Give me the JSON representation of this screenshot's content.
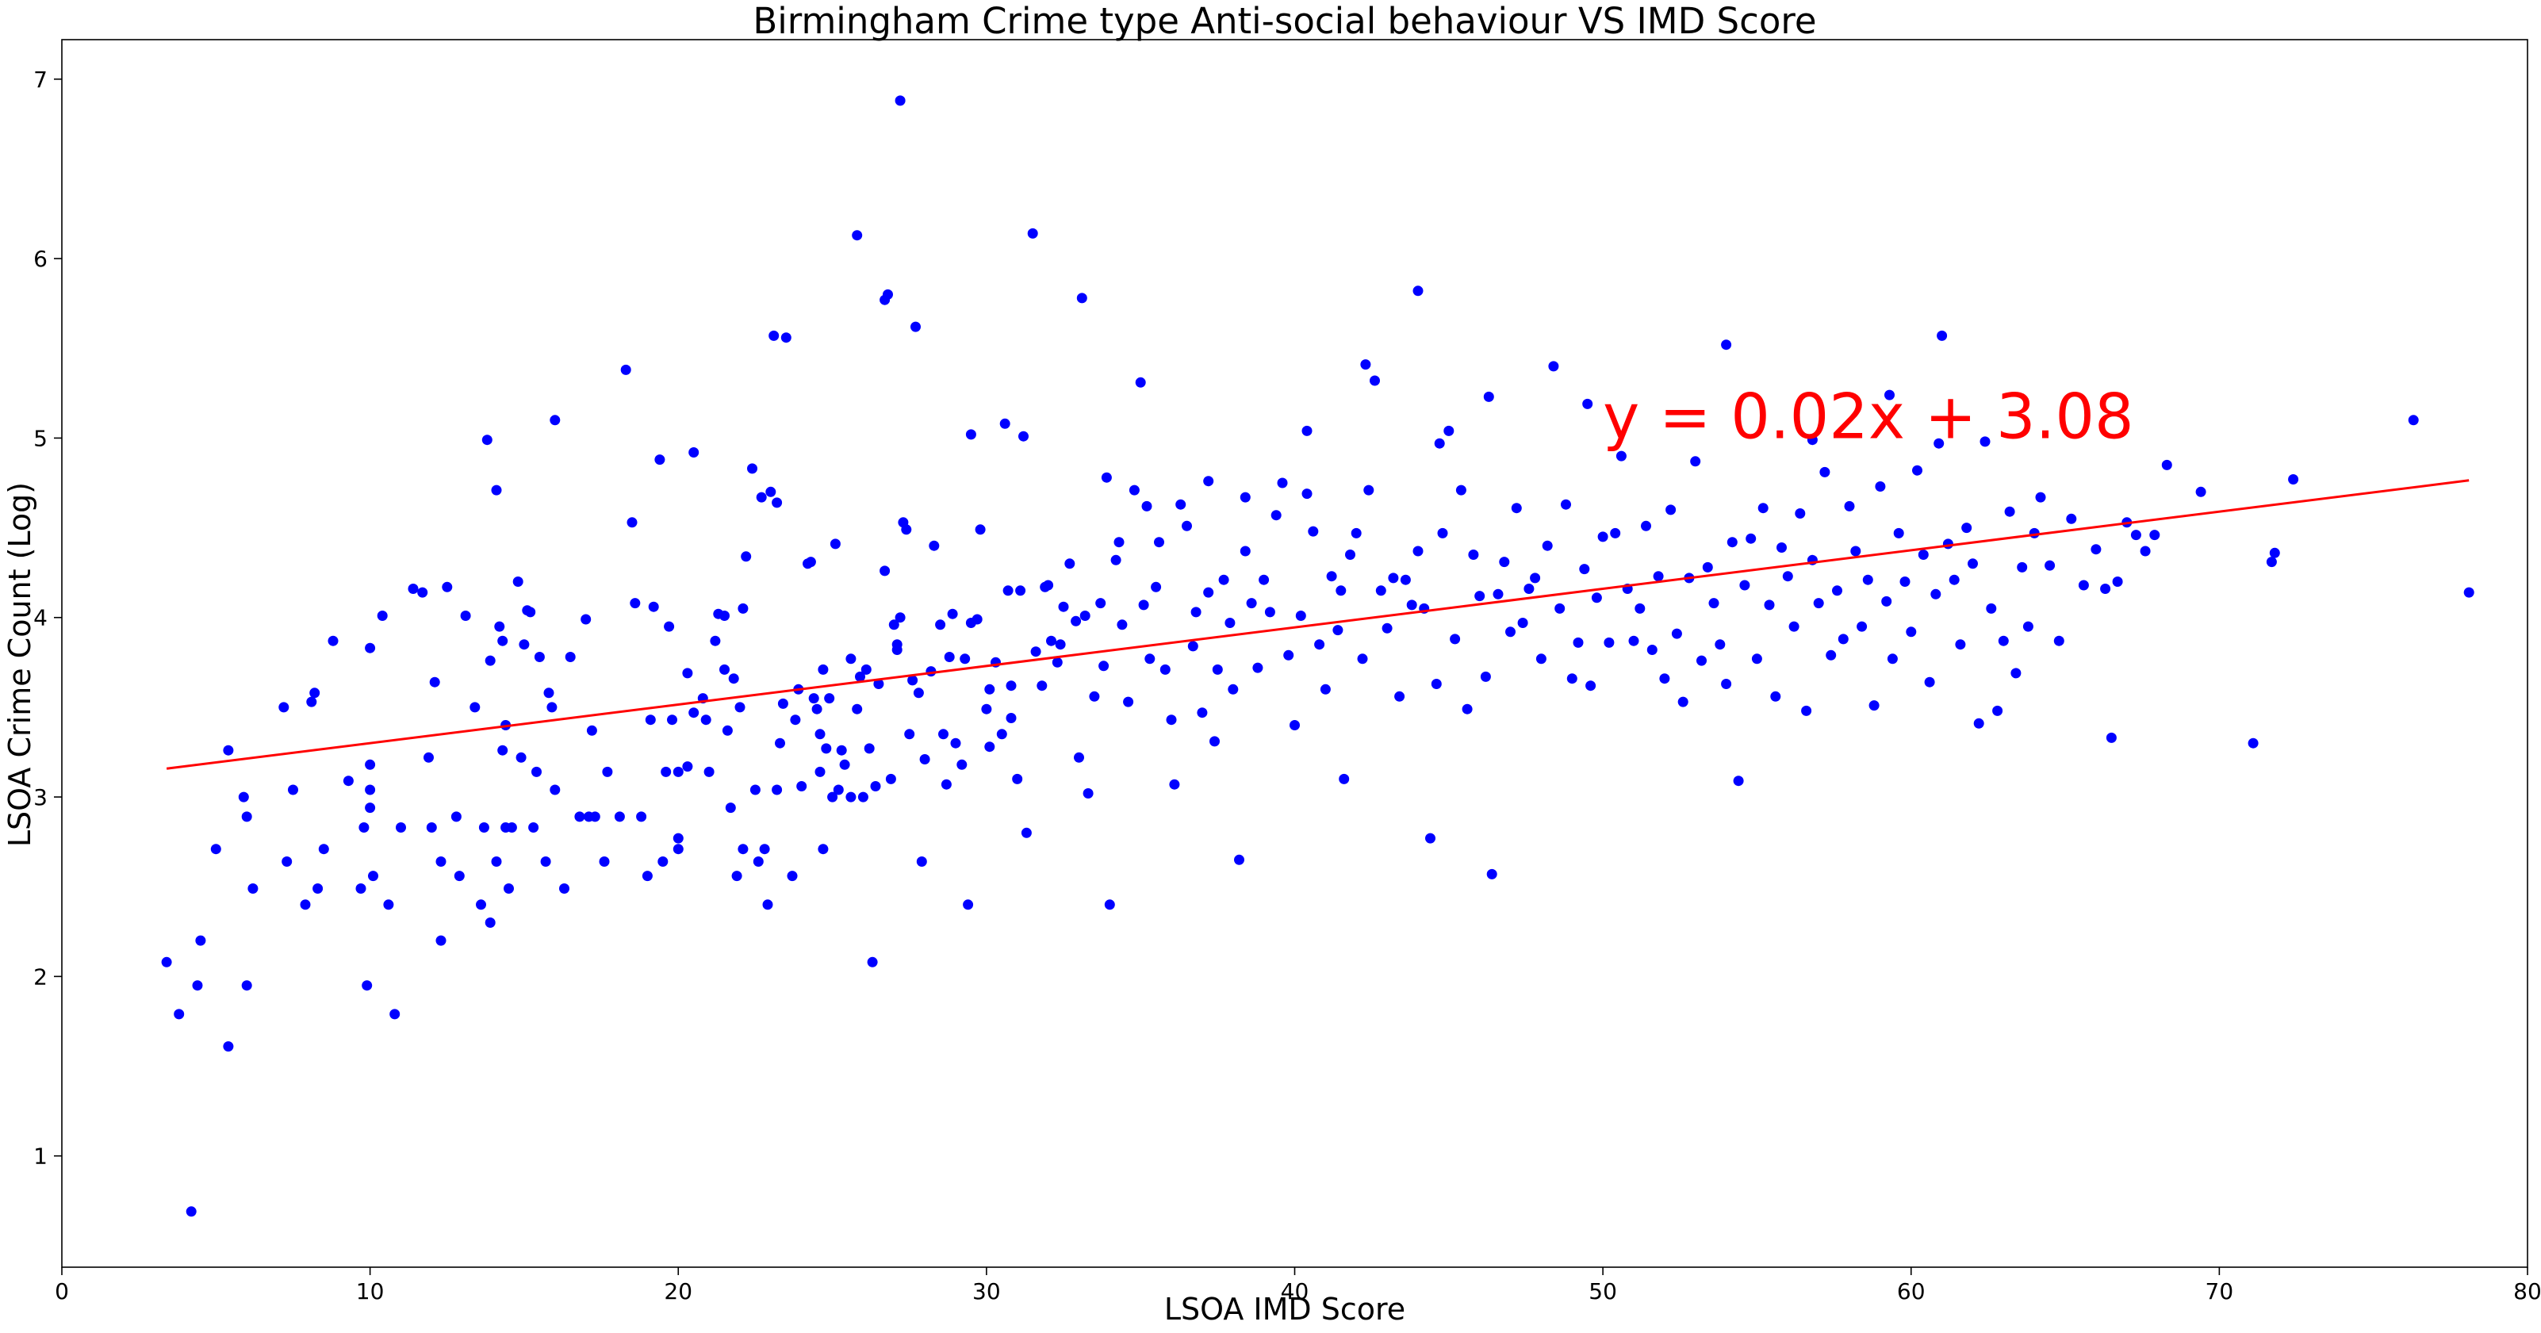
{
  "chart_data": {
    "type": "scatter",
    "title": "Birmingham Crime type Anti-social behaviour VS IMD Score",
    "xlabel": "LSOA IMD Score",
    "ylabel": "LSOA Crime Count (Log)",
    "xlim": [
      0,
      80
    ],
    "ylim": [
      0.38,
      7.22
    ],
    "xticks": [
      0,
      10,
      20,
      30,
      40,
      50,
      60,
      70,
      80
    ],
    "yticks": [
      1,
      2,
      3,
      4,
      5,
      6,
      7
    ],
    "grid": false,
    "legend": "none",
    "marker_color": "#0000ff",
    "line_color": "#ff0000",
    "trendline": {
      "slope": 0.0215,
      "intercept": 3.085,
      "x_range": [
        3.4,
        78.1
      ],
      "label": "y = 0.02x + 3.08"
    },
    "points": [
      [
        3.4,
        2.08
      ],
      [
        3.8,
        1.79
      ],
      [
        4.2,
        0.69
      ],
      [
        4.5,
        2.2
      ],
      [
        4.4,
        1.95
      ],
      [
        5.0,
        2.71
      ],
      [
        5.4,
        1.61
      ],
      [
        5.4,
        3.26
      ],
      [
        5.9,
        3.0
      ],
      [
        6.0,
        2.89
      ],
      [
        6.0,
        1.95
      ],
      [
        6.2,
        2.49
      ],
      [
        7.2,
        3.5
      ],
      [
        7.3,
        2.64
      ],
      [
        7.5,
        3.04
      ],
      [
        7.9,
        2.4
      ],
      [
        8.1,
        3.53
      ],
      [
        8.2,
        3.58
      ],
      [
        8.3,
        2.49
      ],
      [
        8.5,
        2.71
      ],
      [
        8.8,
        3.87
      ],
      [
        9.3,
        3.09
      ],
      [
        9.7,
        2.49
      ],
      [
        9.8,
        2.83
      ],
      [
        9.9,
        1.95
      ],
      [
        10.0,
        3.18
      ],
      [
        10.0,
        2.94
      ],
      [
        10.0,
        3.04
      ],
      [
        10.0,
        3.83
      ],
      [
        10.1,
        2.56
      ],
      [
        10.4,
        4.01
      ],
      [
        10.6,
        2.4
      ],
      [
        10.8,
        1.79
      ],
      [
        11.0,
        2.83
      ],
      [
        11.4,
        4.16
      ],
      [
        11.7,
        4.14
      ],
      [
        11.9,
        3.22
      ],
      [
        12.0,
        2.83
      ],
      [
        12.1,
        3.64
      ],
      [
        12.3,
        2.64
      ],
      [
        12.3,
        2.2
      ],
      [
        12.5,
        4.17
      ],
      [
        12.8,
        2.89
      ],
      [
        12.9,
        2.56
      ],
      [
        13.1,
        4.01
      ],
      [
        13.4,
        3.5
      ],
      [
        13.6,
        2.4
      ],
      [
        13.7,
        2.83
      ],
      [
        13.8,
        4.99
      ],
      [
        13.9,
        3.76
      ],
      [
        13.9,
        2.3
      ],
      [
        14.1,
        2.64
      ],
      [
        14.1,
        4.71
      ],
      [
        14.2,
        3.95
      ],
      [
        14.3,
        3.87
      ],
      [
        14.3,
        3.26
      ],
      [
        14.4,
        3.4
      ],
      [
        14.4,
        2.83
      ],
      [
        14.5,
        2.49
      ],
      [
        14.6,
        2.83
      ],
      [
        14.8,
        4.2
      ],
      [
        14.9,
        3.22
      ],
      [
        15.0,
        3.85
      ],
      [
        15.1,
        4.04
      ],
      [
        15.2,
        4.03
      ],
      [
        15.3,
        2.83
      ],
      [
        15.4,
        3.14
      ],
      [
        15.5,
        3.78
      ],
      [
        15.7,
        2.64
      ],
      [
        15.8,
        3.58
      ],
      [
        15.9,
        3.5
      ],
      [
        16.0,
        3.04
      ],
      [
        16.0,
        5.1
      ],
      [
        16.3,
        2.49
      ],
      [
        16.5,
        3.78
      ],
      [
        16.8,
        2.89
      ],
      [
        17.0,
        3.99
      ],
      [
        17.1,
        2.89
      ],
      [
        17.2,
        3.37
      ],
      [
        17.3,
        2.89
      ],
      [
        17.6,
        2.64
      ],
      [
        17.7,
        3.14
      ],
      [
        18.1,
        2.89
      ],
      [
        18.3,
        5.38
      ],
      [
        18.5,
        4.53
      ],
      [
        18.6,
        4.08
      ],
      [
        18.8,
        2.89
      ],
      [
        19.0,
        2.56
      ],
      [
        19.1,
        3.43
      ],
      [
        19.2,
        4.06
      ],
      [
        19.4,
        4.88
      ],
      [
        19.5,
        2.64
      ],
      [
        19.6,
        3.14
      ],
      [
        19.7,
        3.95
      ],
      [
        19.8,
        3.43
      ],
      [
        20.0,
        3.14
      ],
      [
        20.0,
        2.71
      ],
      [
        20.0,
        2.77
      ],
      [
        20.3,
        3.17
      ],
      [
        20.3,
        3.69
      ],
      [
        20.5,
        3.47
      ],
      [
        20.5,
        4.92
      ],
      [
        20.8,
        3.55
      ],
      [
        20.9,
        3.43
      ],
      [
        21.0,
        3.14
      ],
      [
        21.2,
        3.87
      ],
      [
        21.3,
        4.02
      ],
      [
        21.5,
        3.71
      ],
      [
        21.5,
        4.01
      ],
      [
        21.6,
        3.37
      ],
      [
        21.7,
        2.94
      ],
      [
        21.8,
        3.66
      ],
      [
        21.9,
        2.56
      ],
      [
        22.0,
        3.5
      ],
      [
        22.1,
        4.05
      ],
      [
        22.1,
        2.71
      ],
      [
        22.2,
        4.34
      ],
      [
        22.4,
        4.83
      ],
      [
        22.5,
        3.04
      ],
      [
        22.6,
        2.64
      ],
      [
        22.7,
        4.67
      ],
      [
        22.8,
        2.71
      ],
      [
        22.9,
        2.4
      ],
      [
        23.0,
        4.7
      ],
      [
        23.1,
        5.57
      ],
      [
        23.2,
        4.64
      ],
      [
        23.2,
        3.04
      ],
      [
        23.3,
        3.3
      ],
      [
        23.4,
        3.52
      ],
      [
        23.5,
        5.56
      ],
      [
        23.7,
        2.56
      ],
      [
        23.8,
        3.43
      ],
      [
        23.9,
        3.6
      ],
      [
        24.0,
        3.06
      ],
      [
        24.2,
        4.3
      ],
      [
        24.3,
        4.31
      ],
      [
        24.4,
        3.55
      ],
      [
        24.5,
        3.49
      ],
      [
        24.6,
        3.14
      ],
      [
        24.6,
        3.35
      ],
      [
        24.7,
        3.71
      ],
      [
        24.7,
        2.71
      ],
      [
        24.8,
        3.27
      ],
      [
        24.9,
        3.55
      ],
      [
        25.0,
        3.0
      ],
      [
        25.1,
        4.41
      ],
      [
        25.2,
        3.04
      ],
      [
        25.3,
        3.26
      ],
      [
        25.4,
        3.18
      ],
      [
        25.6,
        3.77
      ],
      [
        25.6,
        3.0
      ],
      [
        25.8,
        3.49
      ],
      [
        25.9,
        3.67
      ],
      [
        26.0,
        3.0
      ],
      [
        26.1,
        3.71
      ],
      [
        26.2,
        3.27
      ],
      [
        26.3,
        2.08
      ],
      [
        26.4,
        3.06
      ],
      [
        26.5,
        3.63
      ],
      [
        26.7,
        4.26
      ],
      [
        26.8,
        5.8
      ],
      [
        26.9,
        3.1
      ],
      [
        27.0,
        3.96
      ],
      [
        27.1,
        3.85
      ],
      [
        27.1,
        3.82
      ],
      [
        27.2,
        4.0
      ],
      [
        27.3,
        4.53
      ],
      [
        27.4,
        4.49
      ],
      [
        27.5,
        3.35
      ],
      [
        27.6,
        3.65
      ],
      [
        27.7,
        5.62
      ],
      [
        27.8,
        3.58
      ],
      [
        27.9,
        2.64
      ],
      [
        28.0,
        3.21
      ],
      [
        28.2,
        3.7
      ],
      [
        28.3,
        4.4
      ],
      [
        28.5,
        3.96
      ],
      [
        28.6,
        3.35
      ],
      [
        28.7,
        3.07
      ],
      [
        28.8,
        3.78
      ],
      [
        28.9,
        4.02
      ],
      [
        29.0,
        3.3
      ],
      [
        29.2,
        3.18
      ],
      [
        29.3,
        3.77
      ],
      [
        29.4,
        2.4
      ],
      [
        29.5,
        3.97
      ],
      [
        29.7,
        3.99
      ],
      [
        29.8,
        4.49
      ],
      [
        30.0,
        3.49
      ],
      [
        30.1,
        3.28
      ],
      [
        30.1,
        3.6
      ],
      [
        30.3,
        3.75
      ],
      [
        30.5,
        3.35
      ],
      [
        30.7,
        4.15
      ],
      [
        30.8,
        3.44
      ],
      [
        30.8,
        3.62
      ],
      [
        31.0,
        3.1
      ],
      [
        31.1,
        4.15
      ],
      [
        31.3,
        2.8
      ],
      [
        31.5,
        6.14
      ],
      [
        31.6,
        3.81
      ],
      [
        31.8,
        3.62
      ],
      [
        31.9,
        4.17
      ],
      [
        32.0,
        4.18
      ],
      [
        32.1,
        3.87
      ],
      [
        32.3,
        3.75
      ],
      [
        32.4,
        3.85
      ],
      [
        32.5,
        4.06
      ],
      [
        32.7,
        4.3
      ],
      [
        32.9,
        3.98
      ],
      [
        33.0,
        3.22
      ],
      [
        33.1,
        5.78
      ],
      [
        33.2,
        4.01
      ],
      [
        33.3,
        3.02
      ],
      [
        33.5,
        3.56
      ],
      [
        33.7,
        4.08
      ],
      [
        33.8,
        3.73
      ],
      [
        34.0,
        2.4
      ],
      [
        34.2,
        4.32
      ],
      [
        34.3,
        4.42
      ],
      [
        34.4,
        3.96
      ],
      [
        34.6,
        3.53
      ],
      [
        34.8,
        4.71
      ],
      [
        35.0,
        5.31
      ],
      [
        35.1,
        4.07
      ],
      [
        35.3,
        3.77
      ],
      [
        35.5,
        4.17
      ],
      [
        35.6,
        4.42
      ],
      [
        35.8,
        3.71
      ],
      [
        36.0,
        3.43
      ],
      [
        36.1,
        3.07
      ],
      [
        36.3,
        4.63
      ],
      [
        36.5,
        4.51
      ],
      [
        36.7,
        3.84
      ],
      [
        36.8,
        4.03
      ],
      [
        37.0,
        3.47
      ],
      [
        37.2,
        4.14
      ],
      [
        37.4,
        3.31
      ],
      [
        37.5,
        3.71
      ],
      [
        37.7,
        4.21
      ],
      [
        37.9,
        3.97
      ],
      [
        38.0,
        3.6
      ],
      [
        38.2,
        2.65
      ],
      [
        38.4,
        4.37
      ],
      [
        38.6,
        4.08
      ],
      [
        38.8,
        3.72
      ],
      [
        39.0,
        4.21
      ],
      [
        39.2,
        4.03
      ],
      [
        39.4,
        4.57
      ],
      [
        39.6,
        4.75
      ],
      [
        39.8,
        3.79
      ],
      [
        40.0,
        3.4
      ],
      [
        40.2,
        4.01
      ],
      [
        40.4,
        4.69
      ],
      [
        40.6,
        4.48
      ],
      [
        40.8,
        3.85
      ],
      [
        41.0,
        3.6
      ],
      [
        41.2,
        4.23
      ],
      [
        41.4,
        3.93
      ],
      [
        41.6,
        3.1
      ],
      [
        41.8,
        4.35
      ],
      [
        42.0,
        4.47
      ],
      [
        42.2,
        3.77
      ],
      [
        42.4,
        4.71
      ],
      [
        42.6,
        5.32
      ],
      [
        42.8,
        4.15
      ],
      [
        43.0,
        3.94
      ],
      [
        43.2,
        4.22
      ],
      [
        43.4,
        3.56
      ],
      [
        43.6,
        4.21
      ],
      [
        43.8,
        4.07
      ],
      [
        44.0,
        4.37
      ],
      [
        44.2,
        4.05
      ],
      [
        44.4,
        2.77
      ],
      [
        44.6,
        3.63
      ],
      [
        44.8,
        4.47
      ],
      [
        45.0,
        5.04
      ],
      [
        45.2,
        3.88
      ],
      [
        45.4,
        4.71
      ],
      [
        45.6,
        3.49
      ],
      [
        45.8,
        4.35
      ],
      [
        46.0,
        4.12
      ],
      [
        46.2,
        3.67
      ],
      [
        46.4,
        2.57
      ],
      [
        46.6,
        4.13
      ],
      [
        46.8,
        4.31
      ],
      [
        47.0,
        3.92
      ],
      [
        47.2,
        4.61
      ],
      [
        47.4,
        3.97
      ],
      [
        47.6,
        4.16
      ],
      [
        47.8,
        4.22
      ],
      [
        48.0,
        3.77
      ],
      [
        48.2,
        4.4
      ],
      [
        48.4,
        5.4
      ],
      [
        48.6,
        4.05
      ],
      [
        48.8,
        4.63
      ],
      [
        49.0,
        3.66
      ],
      [
        49.2,
        3.86
      ],
      [
        49.4,
        4.27
      ],
      [
        49.6,
        3.62
      ],
      [
        49.8,
        4.11
      ],
      [
        50.0,
        4.45
      ],
      [
        50.2,
        3.86
      ],
      [
        50.4,
        4.47
      ],
      [
        50.6,
        4.9
      ],
      [
        50.8,
        4.16
      ],
      [
        51.0,
        3.87
      ],
      [
        51.2,
        4.05
      ],
      [
        51.4,
        4.51
      ],
      [
        51.6,
        3.82
      ],
      [
        51.8,
        4.23
      ],
      [
        52.0,
        3.66
      ],
      [
        52.2,
        4.6
      ],
      [
        52.4,
        3.91
      ],
      [
        52.6,
        3.53
      ],
      [
        52.8,
        4.22
      ],
      [
        53.0,
        4.87
      ],
      [
        53.2,
        3.76
      ],
      [
        53.4,
        4.28
      ],
      [
        53.6,
        4.08
      ],
      [
        53.8,
        3.85
      ],
      [
        54.0,
        3.63
      ],
      [
        54.2,
        4.42
      ],
      [
        54.4,
        3.09
      ],
      [
        54.6,
        4.18
      ],
      [
        54.8,
        4.44
      ],
      [
        55.0,
        3.77
      ],
      [
        55.2,
        4.61
      ],
      [
        55.4,
        4.07
      ],
      [
        55.6,
        3.56
      ],
      [
        55.8,
        4.39
      ],
      [
        56.0,
        4.23
      ],
      [
        56.2,
        3.95
      ],
      [
        56.4,
        4.58
      ],
      [
        56.6,
        3.48
      ],
      [
        56.8,
        4.32
      ],
      [
        57.0,
        4.08
      ],
      [
        57.2,
        4.81
      ],
      [
        57.4,
        3.79
      ],
      [
        57.6,
        4.15
      ],
      [
        57.8,
        3.88
      ],
      [
        58.0,
        4.62
      ],
      [
        58.2,
        4.37
      ],
      [
        58.4,
        3.95
      ],
      [
        58.6,
        4.21
      ],
      [
        58.8,
        3.51
      ],
      [
        59.0,
        4.73
      ],
      [
        59.2,
        4.09
      ],
      [
        59.4,
        3.77
      ],
      [
        59.6,
        4.47
      ],
      [
        59.8,
        4.2
      ],
      [
        60.0,
        3.92
      ],
      [
        60.2,
        4.82
      ],
      [
        60.4,
        4.35
      ],
      [
        60.6,
        3.64
      ],
      [
        60.8,
        4.13
      ],
      [
        61.0,
        5.57
      ],
      [
        61.2,
        4.41
      ],
      [
        61.4,
        4.21
      ],
      [
        61.6,
        3.85
      ],
      [
        61.8,
        4.5
      ],
      [
        62.0,
        4.3
      ],
      [
        62.2,
        3.41
      ],
      [
        62.4,
        4.98
      ],
      [
        62.6,
        4.05
      ],
      [
        62.8,
        3.48
      ],
      [
        63.0,
        3.87
      ],
      [
        63.2,
        4.59
      ],
      [
        63.4,
        3.69
      ],
      [
        63.6,
        4.28
      ],
      [
        63.8,
        3.95
      ],
      [
        64.0,
        4.47
      ],
      [
        64.2,
        4.67
      ],
      [
        64.5,
        4.29
      ],
      [
        64.8,
        3.87
      ],
      [
        65.2,
        4.55
      ],
      [
        65.6,
        4.18
      ],
      [
        66.0,
        4.38
      ],
      [
        66.3,
        4.16
      ],
      [
        66.5,
        3.33
      ],
      [
        66.7,
        4.2
      ],
      [
        67.0,
        4.53
      ],
      [
        67.3,
        4.46
      ],
      [
        67.6,
        4.37
      ],
      [
        67.9,
        4.46
      ],
      [
        68.3,
        4.85
      ],
      [
        69.4,
        4.7
      ],
      [
        71.1,
        3.3
      ],
      [
        71.7,
        4.31
      ],
      [
        71.8,
        4.36
      ],
      [
        72.4,
        4.77
      ],
      [
        76.3,
        5.1
      ],
      [
        78.1,
        4.14
      ],
      [
        40.4,
        5.04
      ],
      [
        41.5,
        4.15
      ],
      [
        42.3,
        5.41
      ],
      [
        44.0,
        5.82
      ],
      [
        44.7,
        4.97
      ],
      [
        46.3,
        5.23
      ],
      [
        49.5,
        5.19
      ],
      [
        54.0,
        5.52
      ],
      [
        56.8,
        4.99
      ],
      [
        59.3,
        5.24
      ],
      [
        60.9,
        4.97
      ],
      [
        37.2,
        4.76
      ],
      [
        38.4,
        4.67
      ],
      [
        35.2,
        4.62
      ],
      [
        33.9,
        4.78
      ],
      [
        31.2,
        5.01
      ],
      [
        30.6,
        5.08
      ],
      [
        29.5,
        5.02
      ],
      [
        27.2,
        6.88
      ],
      [
        25.8,
        6.13
      ],
      [
        26.7,
        5.77
      ]
    ]
  }
}
